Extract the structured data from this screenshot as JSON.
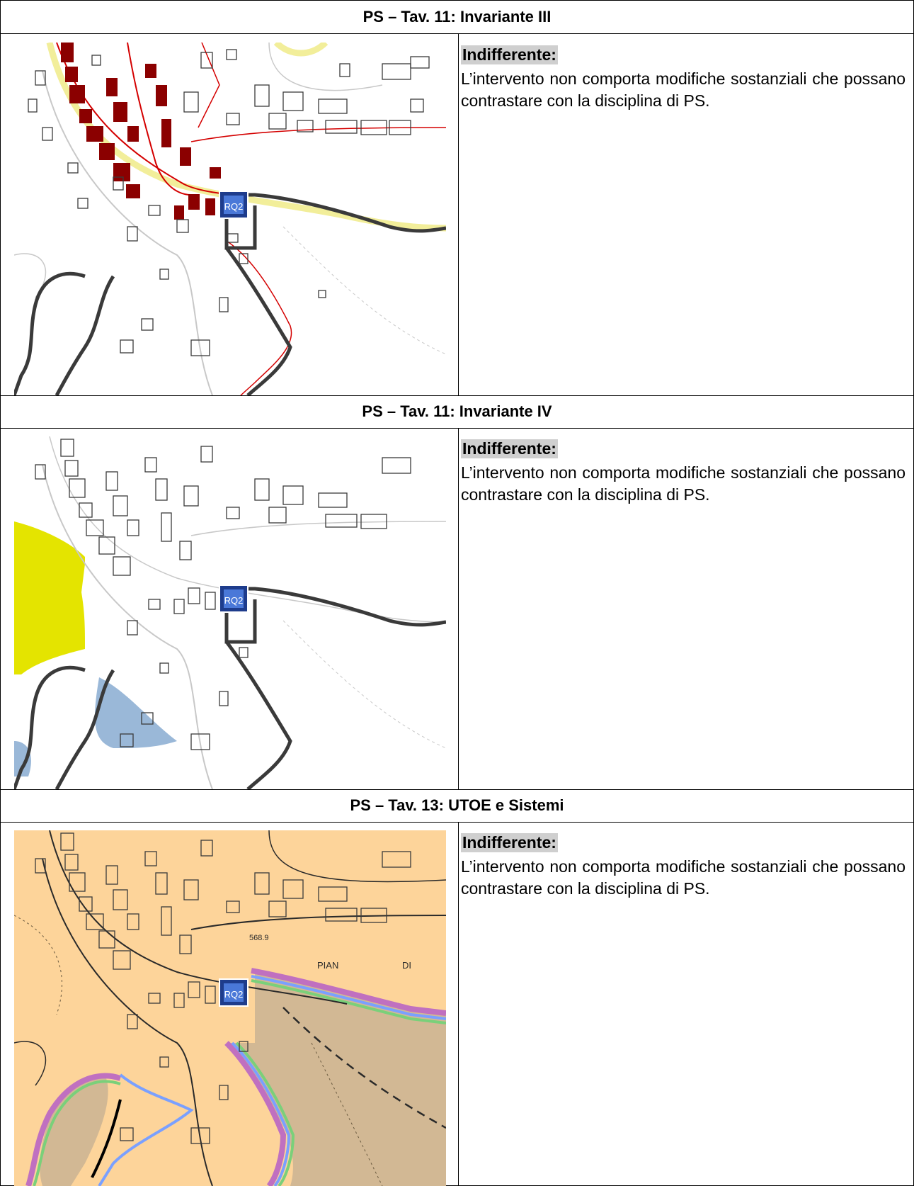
{
  "sections": [
    {
      "title": "PS – Tav. 11: Invariante III",
      "label": "Indifferente:",
      "text": "L’intervento non comporta modifiche sostanziali che possano contrastare con la disciplina di PS.",
      "map_badge": "RQ2"
    },
    {
      "title": "PS – Tav. 11: Invariante IV",
      "label": "Indifferente:",
      "text": "L’intervento non comporta modifiche sostanziali che possano contrastare con la disciplina di PS.",
      "map_badge": "RQ2"
    },
    {
      "title": "PS – Tav. 13: UTOE e Sistemi",
      "label": "Indifferente:",
      "text": "L’intervento non comporta modifiche sostanziali che possano contrastare con la disciplina di PS.",
      "map_badge": "RQ2",
      "map_labels": [
        "568.9",
        "PIAN",
        "DI"
      ]
    }
  ],
  "colors": {
    "border": "#000000",
    "label_bg": "#cfcfcf",
    "building_red": "#8b0000",
    "road_yellow": "#f2ee9a",
    "zone_yellow": "#e4e400",
    "zone_blue": "#9ab8d8",
    "utoe_orange": "#fdd49a",
    "utoe_tan": "#d2b894"
  }
}
